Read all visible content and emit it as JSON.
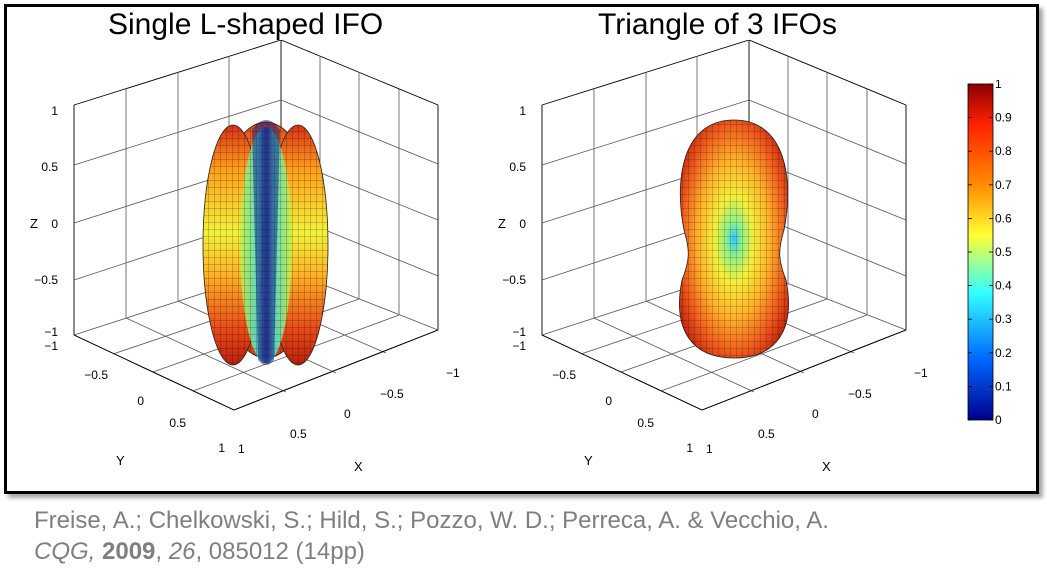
{
  "figure": {
    "left_title": "Single L-shaped IFO",
    "right_title": "Triangle of 3 IFOs"
  },
  "axes": {
    "z_label": "Z",
    "y_label": "Y",
    "x_label": "X",
    "z_ticks": [
      "1",
      "0.5",
      "0",
      "−0.5",
      "−1"
    ],
    "y_ticks": [
      "−1",
      "−0.5",
      "0",
      "0.5",
      "1"
    ],
    "x_ticks": [
      "−1",
      "−0.5",
      "0",
      "0.5",
      "1"
    ]
  },
  "colorbar": {
    "ticks": [
      "1",
      "0.9",
      "0.8",
      "0.7",
      "0.6",
      "0.5",
      "0.4",
      "0.3",
      "0.2",
      "0.1",
      "0"
    ],
    "colors": [
      "#8b0000",
      "#ff2200",
      "#ff8c00",
      "#ffff33",
      "#33ffff",
      "#0066ff",
      "#00008b"
    ]
  },
  "citation": {
    "line1": "Freise, A.; Chelkowski, S.; Hild, S.; Pozzo, W. D.; Perreca, A. & Vecchio, A.",
    "journal": "CQG,",
    "year": "2009",
    "volume": "26",
    "pages": ", 085012 (14pp)"
  }
}
